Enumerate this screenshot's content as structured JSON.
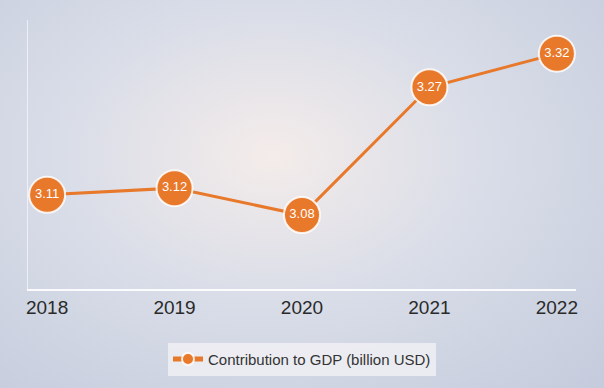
{
  "chart_data": {
    "type": "line",
    "categories": [
      "2018",
      "2019",
      "2020",
      "2021",
      "2022"
    ],
    "series": [
      {
        "name": "Contribution to GDP (billion USD)",
        "color": "#e8782a",
        "marker": "circle",
        "values": [
          3.11,
          3.12,
          3.08,
          3.27,
          3.32
        ]
      }
    ],
    "ylim": [
      2.97,
      3.37
    ],
    "data_labels": true,
    "tick_labels": "x",
    "grid": false,
    "legend": "bottom"
  }
}
